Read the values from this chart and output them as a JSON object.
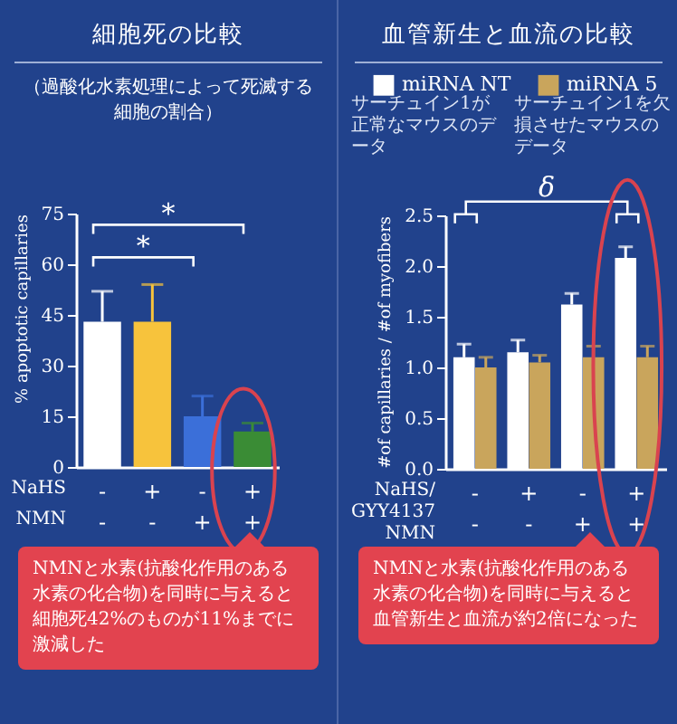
{
  "chart_data": [
    {
      "type": "bar",
      "title": "細胞死の比較",
      "subtitle": "（過酸化水素処理によって死滅する細胞の割合）",
      "xlabel": "NaHS\nNMN",
      "ylabel": "% apoptotic capillaries",
      "categories": [
        "-\n-",
        "+\n-",
        "-\n+",
        "+\n+"
      ],
      "values": [
        43,
        43,
        15,
        10.5
      ],
      "colors": [
        "#ffffff",
        "#f7c33c",
        "#3b6fd9",
        "#3a8c35"
      ],
      "errors": [
        [
          43,
          52
        ],
        [
          43,
          54
        ],
        [
          15,
          21
        ],
        [
          10.5,
          13
        ]
      ],
      "ylim": [
        0,
        75
      ],
      "yticks": [
        0,
        15,
        30,
        45,
        60,
        75
      ],
      "annotations": [
        "*",
        "*",
        "NMNと水素(抗酸化作用のある水素の化合物)を同時に与えると細胞死42%のものが11%までに激減した"
      ]
    },
    {
      "type": "bar",
      "title": "血管新生と血流の比較",
      "xlabel": "NaHS/\nGYY4137\nNMN",
      "ylabel": "#of capillaries / #of myofibers",
      "categories": [
        "-\n-",
        "+\n-",
        "-\n+",
        "+\n+"
      ],
      "series": [
        {
          "name": "miRNA NT",
          "color": "#ffffff",
          "values": [
            1.1,
            1.15,
            1.62,
            2.08
          ],
          "errors": [
            [
              1.1,
              1.23
            ],
            [
              1.15,
              1.27
            ],
            [
              1.62,
              1.73
            ],
            [
              2.08,
              2.19
            ]
          ]
        },
        {
          "name": "miRNA 5",
          "color": "#c9a55c",
          "values": [
            1.0,
            1.05,
            1.1,
            1.1
          ],
          "errors": [
            [
              1.0,
              1.1
            ],
            [
              1.05,
              1.12
            ],
            [
              1.1,
              1.21
            ],
            [
              1.1,
              1.21
            ]
          ]
        }
      ],
      "ylim": [
        0,
        2.5
      ],
      "yticks": [
        {
          "value": 0,
          "label": "0.0"
        },
        0.5,
        {
          "value": 1,
          "label": "1.0"
        },
        1.5,
        {
          "value": 2,
          "label": "2.0"
        },
        2.5
      ],
      "legend": "top",
      "annotations": [
        "δ",
        "サーチュイン1が正常なマウスのデータ",
        "サーチュイン1を欠損させたマウスのデータ",
        "NMNと水素(抗酸化作用のある水素の化合物)を同時に与えると血管新生と血流が約2倍になった"
      ]
    }
  ]
}
